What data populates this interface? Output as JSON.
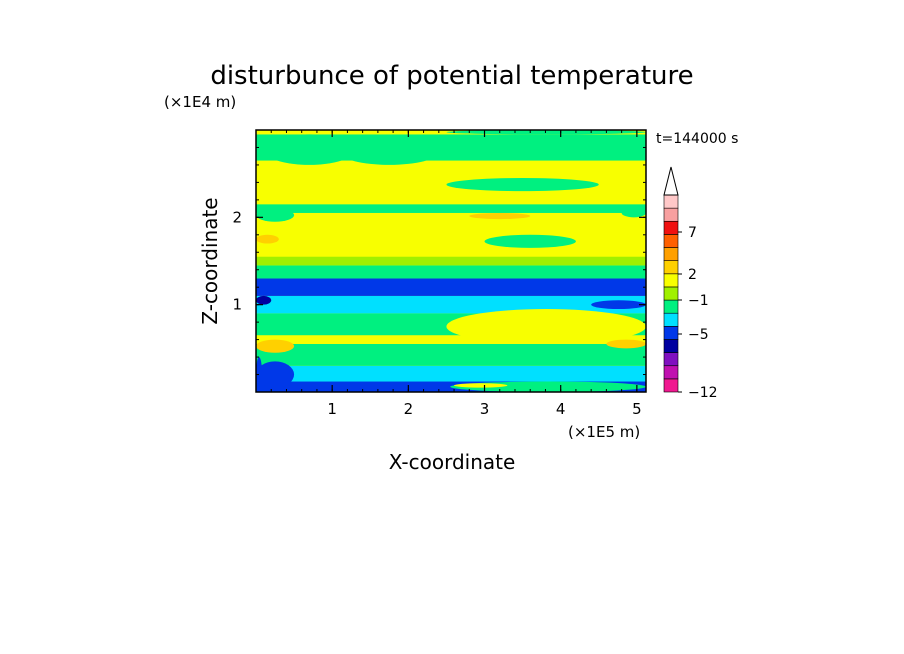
{
  "chart_data": {
    "type": "heatmap",
    "title": "disturbunce of potential temperature",
    "time_label": "t=144000 s",
    "xlabel": "X-coordinate",
    "ylabel": "Z-coordinate",
    "x_unit": "(×1E5 m)",
    "y_unit": "(×1E4 m)",
    "xlim": [
      0,
      5.12
    ],
    "ylim": [
      0,
      3.0
    ],
    "x_ticks": [
      1,
      2,
      3,
      4,
      5
    ],
    "y_ticks": [
      1,
      2
    ],
    "x_tick_labels": [
      "1",
      "2",
      "3",
      "4",
      "5"
    ],
    "y_tick_labels": [
      "1",
      "2"
    ],
    "colorbar": {
      "labeled_levels": [
        "7",
        "2",
        "−1",
        "−5",
        "−12"
      ],
      "colors": [
        "#f01890",
        "#c010b0",
        "#8010c0",
        "#0000a0",
        "#0038e8",
        "#00e0ff",
        "#00f080",
        "#a0f000",
        "#f8ff00",
        "#ffd000",
        "#ffa000",
        "#ff6000",
        "#f01010",
        "#f8a0a0",
        "#ffc8c8"
      ]
    },
    "bands": [
      {
        "z": [
          0.0,
          0.12
        ],
        "color": "#0038e8"
      },
      {
        "z": [
          0.12,
          0.3
        ],
        "color": "#00e0ff"
      },
      {
        "z": [
          0.3,
          0.55
        ],
        "color": "#00f080"
      },
      {
        "z": [
          0.55,
          0.65
        ],
        "color": "#f8ff00"
      },
      {
        "z": [
          0.65,
          0.9
        ],
        "color": "#00f080"
      },
      {
        "z": [
          0.9,
          1.1
        ],
        "color": "#00e0ff"
      },
      {
        "z": [
          1.1,
          1.3
        ],
        "color": "#0038e8"
      },
      {
        "z": [
          1.3,
          1.45
        ],
        "color": "#00f080"
      },
      {
        "z": [
          1.45,
          1.55
        ],
        "color": "#a0f000"
      },
      {
        "z": [
          1.55,
          2.05
        ],
        "color": "#f8ff00"
      },
      {
        "z": [
          2.05,
          2.15
        ],
        "color": "#00f080"
      },
      {
        "z": [
          2.15,
          2.65
        ],
        "color": "#f8ff00"
      },
      {
        "z": [
          2.65,
          2.95
        ],
        "color": "#00f080"
      },
      {
        "z": [
          2.95,
          3.0
        ],
        "color": "#f8ff00"
      }
    ],
    "features": [
      {
        "x": [
          0.0,
          0.5
        ],
        "z": [
          0.05,
          0.35
        ],
        "color": "#0038e8"
      },
      {
        "x": [
          0.0,
          0.08
        ],
        "z": [
          0.0,
          0.4
        ],
        "color": "#0038e8"
      },
      {
        "x": [
          2.55,
          5.12
        ],
        "z": [
          0.0,
          0.12
        ],
        "color": "#00f080"
      },
      {
        "x": [
          2.6,
          3.3
        ],
        "z": [
          0.05,
          0.1
        ],
        "color": "#f8ff00"
      },
      {
        "x": [
          4.6,
          5.12
        ],
        "z": [
          0.5,
          0.6
        ],
        "color": "#ffd000"
      },
      {
        "x": [
          0.0,
          0.5
        ],
        "z": [
          0.45,
          0.6
        ],
        "color": "#ffd000"
      },
      {
        "x": [
          4.4,
          5.12
        ],
        "z": [
          0.95,
          1.05
        ],
        "color": "#0038e8"
      },
      {
        "x": [
          0.0,
          0.2
        ],
        "z": [
          1.0,
          1.1
        ],
        "color": "#0000a0"
      },
      {
        "x": [
          2.5,
          5.12
        ],
        "z": [
          0.55,
          0.95
        ],
        "color": "#f8ff00"
      },
      {
        "x": [
          0.0,
          0.3
        ],
        "z": [
          1.7,
          1.8
        ],
        "color": "#ffd000"
      },
      {
        "x": [
          0.0,
          0.5
        ],
        "z": [
          1.95,
          2.1
        ],
        "color": "#00f080"
      },
      {
        "x": [
          2.8,
          3.6
        ],
        "z": [
          1.98,
          2.05
        ],
        "color": "#ffd000"
      },
      {
        "x": [
          3.0,
          4.2
        ],
        "z": [
          1.65,
          1.8
        ],
        "color": "#00f080"
      },
      {
        "x": [
          2.5,
          4.5
        ],
        "z": [
          2.3,
          2.45
        ],
        "color": "#00f080"
      },
      {
        "x": [
          4.8,
          5.12
        ],
        "z": [
          2.0,
          2.1
        ],
        "color": "#00f080"
      },
      {
        "x": [
          0.1,
          1.3
        ],
        "z": [
          2.6,
          2.95
        ],
        "color": "#00f080"
      },
      {
        "x": [
          1.1,
          2.4
        ],
        "z": [
          2.6,
          2.9
        ],
        "color": "#00f080"
      },
      {
        "x": [
          2.5,
          5.12
        ],
        "z": [
          2.95,
          3.0
        ],
        "color": "#00f080"
      }
    ]
  }
}
